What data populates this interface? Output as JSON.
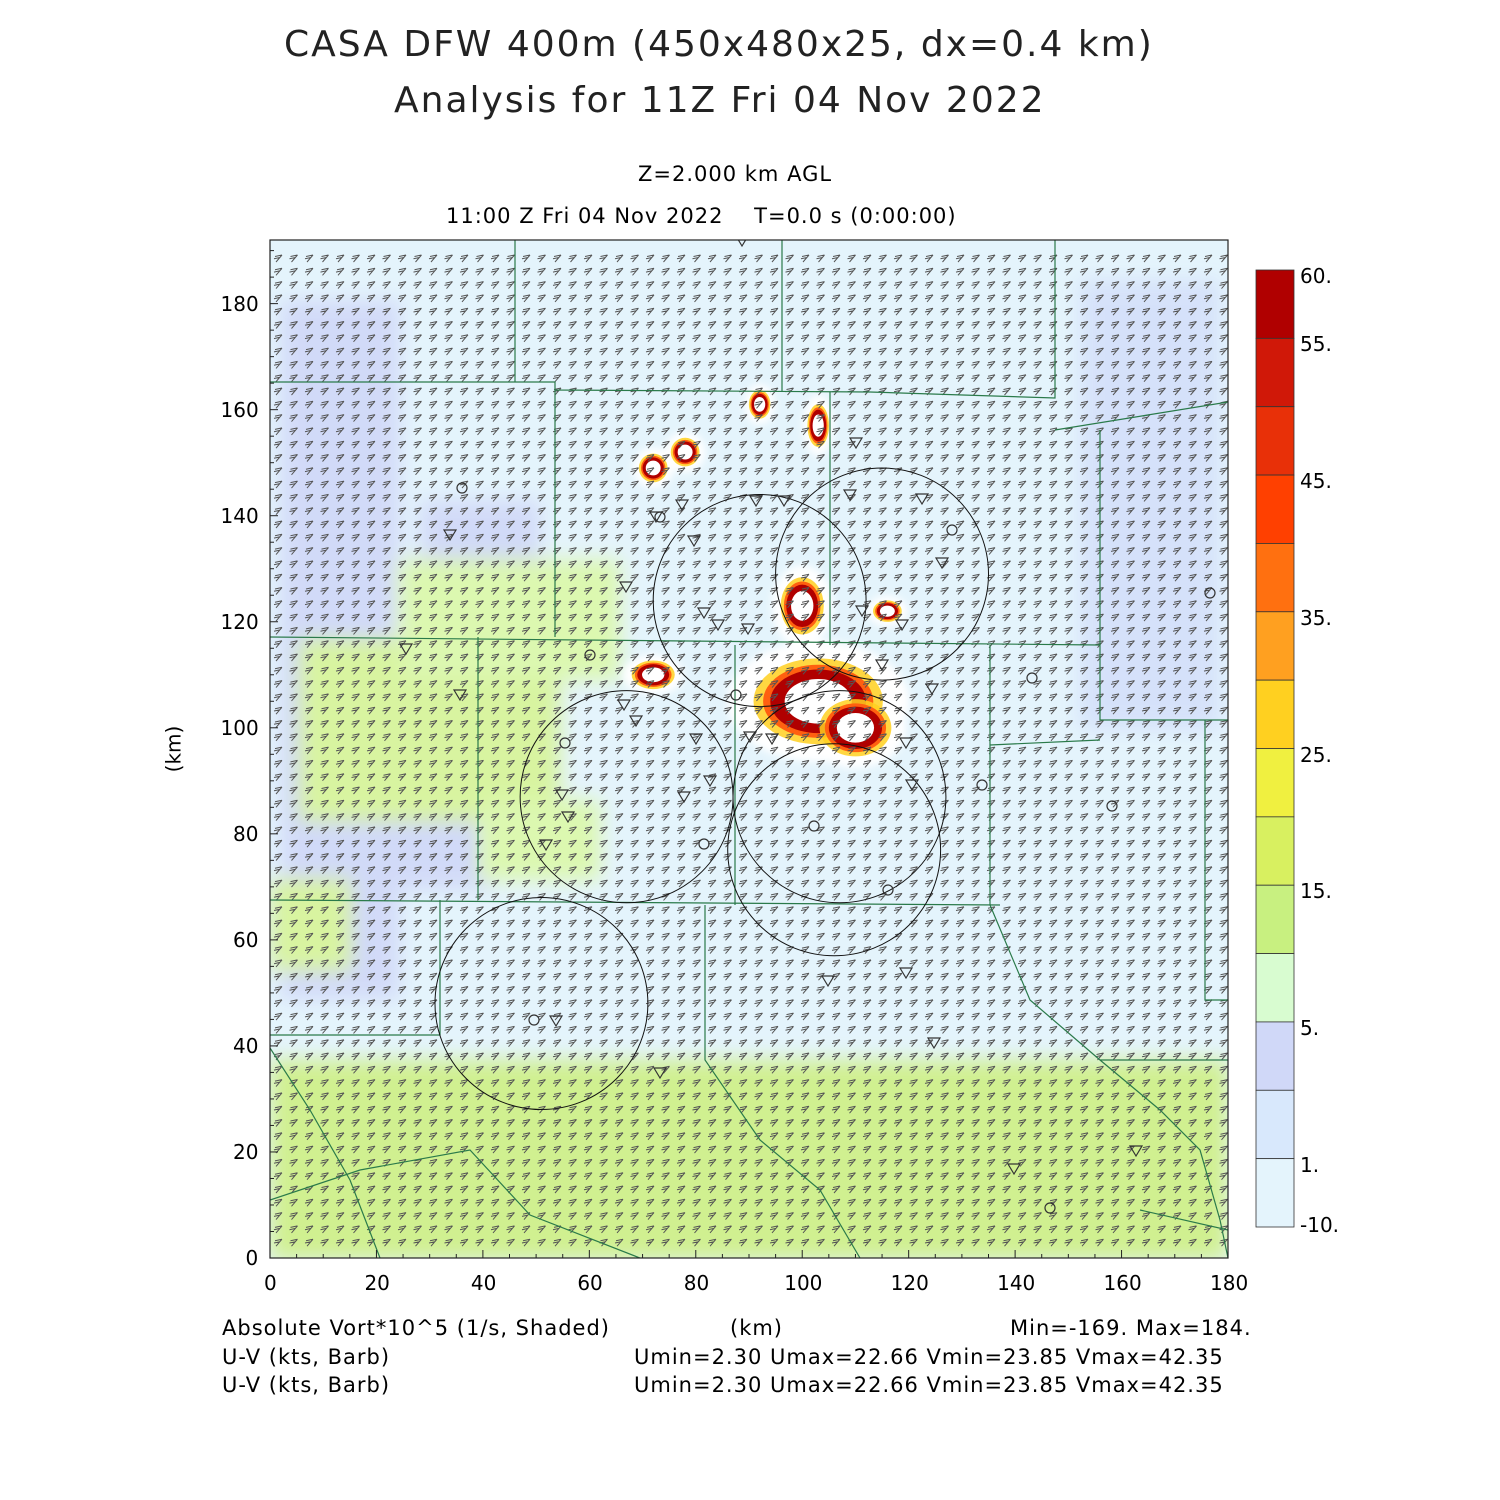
{
  "header": {
    "title_line1": "CASA DFW 400m (450x480x25, dx=0.4 km)",
    "title_line2": "Analysis for 11Z Fri 04 Nov 2022",
    "level": "Z=2.000 km AGL",
    "time": "11:00 Z Fri 04 Nov 2022    T=0.0 s (0:00:00)"
  },
  "axes": {
    "x_label": "(km)",
    "y_label": "(km)",
    "x_ticks": [
      "0",
      "20",
      "40",
      "60",
      "80",
      "100",
      "120",
      "140",
      "160",
      "180"
    ],
    "y_ticks": [
      "0",
      "20",
      "40",
      "60",
      "80",
      "100",
      "120",
      "140",
      "160",
      "180"
    ],
    "x_range": [
      0,
      180
    ],
    "y_range": [
      0,
      192
    ]
  },
  "colorbar": {
    "labels": [
      "60.",
      "55.",
      "45.",
      "35.",
      "25.",
      "15.",
      "5.",
      "1.",
      "-10."
    ],
    "colors": [
      "#b00000",
      "#d01808",
      "#e83008",
      "#ff4000",
      "#ff7010",
      "#ffa020",
      "#ffd020",
      "#f0f040",
      "#d8f060",
      "#c8f080",
      "#d8fcd0",
      "#d0d8f8",
      "#d8e8fc",
      "#e4f4fc"
    ]
  },
  "footer": {
    "field_label": "Absolute Vort*10^5 (1/s, Shaded)",
    "x_unit": "(km)",
    "minmax": "Min=-169. Max=184.",
    "barb_label_1": "U-V (kts, Barb)",
    "barb_label_2": "U-V (kts, Barb)",
    "wind_stats_1": "Umin=2.30 Umax=22.66 Vmin=23.85 Vmax=42.35",
    "wind_stats_2": "Umin=2.30 Umax=22.66 Vmin=23.85 Vmax=42.35"
  },
  "map_data": {
    "background_color": "#e4f4fc",
    "vorticity_cores": [
      {
        "x": 103,
        "y": 105,
        "rx": 9,
        "ry": 6
      },
      {
        "x": 110,
        "y": 100,
        "rx": 5,
        "ry": 4
      },
      {
        "x": 100,
        "y": 123,
        "rx": 3,
        "ry": 4
      },
      {
        "x": 72,
        "y": 110,
        "rx": 3,
        "ry": 2
      },
      {
        "x": 72,
        "y": 149,
        "rx": 2,
        "ry": 2
      },
      {
        "x": 78,
        "y": 152,
        "rx": 2,
        "ry": 2
      },
      {
        "x": 92,
        "y": 161,
        "rx": 1.5,
        "ry": 2
      },
      {
        "x": 103,
        "y": 157,
        "rx": 1.5,
        "ry": 3
      },
      {
        "x": 116,
        "y": 122,
        "rx": 2,
        "ry": 1.5
      }
    ],
    "radar_rings": [
      {
        "x": 67,
        "y": 87,
        "r": 20
      },
      {
        "x": 92,
        "y": 124,
        "r": 20
      },
      {
        "x": 106,
        "y": 77,
        "r": 20
      },
      {
        "x": 115,
        "y": 129,
        "r": 20
      },
      {
        "x": 107,
        "y": 87,
        "r": 20
      },
      {
        "x": 51,
        "y": 48,
        "r": 20
      }
    ]
  }
}
